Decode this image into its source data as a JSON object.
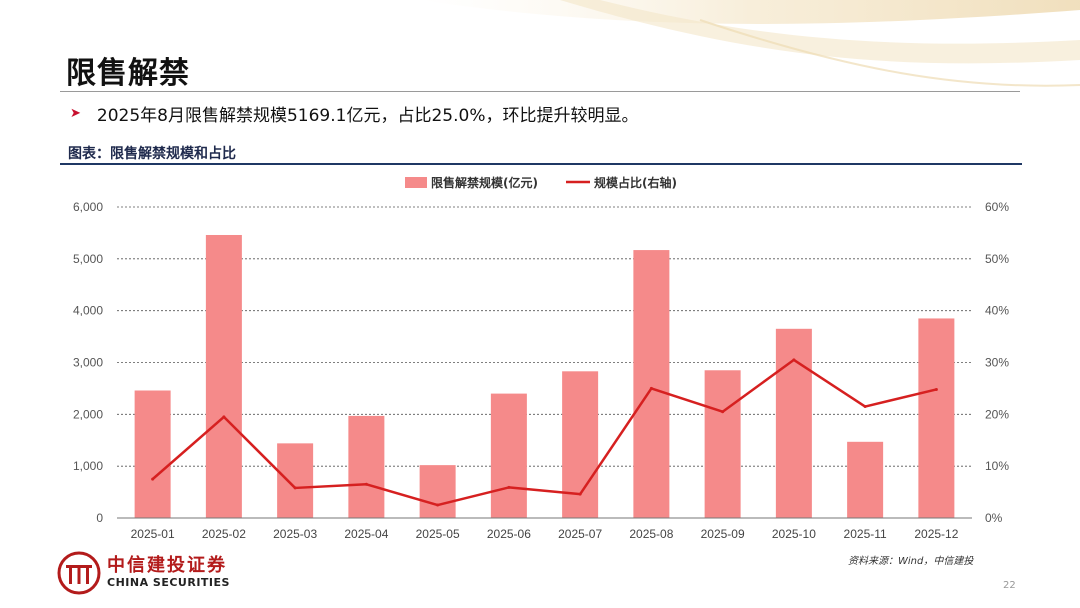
{
  "title": "限售解禁",
  "bullet": "2025年8月限售解禁规模5169.1亿元，占比25.0%，环比提升较明显。",
  "chart_caption": "图表：限售解禁规模和占比",
  "chart_data": {
    "type": "bar",
    "categories": [
      "2025-01",
      "2025-02",
      "2025-03",
      "2025-04",
      "2025-05",
      "2025-06",
      "2025-07",
      "2025-08",
      "2025-09",
      "2025-10",
      "2025-11",
      "2025-12"
    ],
    "series": [
      {
        "name": "限售解禁规模(亿元)",
        "type": "bar",
        "axis": "left",
        "values": [
          2460,
          5460,
          1440,
          1970,
          1020,
          2400,
          2830,
          5169.1,
          2850,
          3650,
          1470,
          3850
        ]
      },
      {
        "name": "规模占比(右轴)",
        "type": "line",
        "axis": "right",
        "values": [
          7.5,
          19.5,
          5.8,
          6.5,
          2.5,
          5.9,
          4.6,
          25.0,
          20.5,
          30.5,
          21.5,
          24.8
        ]
      }
    ],
    "left_axis": {
      "min": 0,
      "max": 6000,
      "ticks": [
        "0",
        "1,000",
        "2,000",
        "3,000",
        "4,000",
        "5,000",
        "6,000"
      ]
    },
    "right_axis": {
      "min": 0,
      "max": 60,
      "ticks": [
        "0%",
        "10%",
        "20%",
        "30%",
        "40%",
        "50%",
        "60%"
      ]
    },
    "legend_position": "top-center",
    "bar_color": "#f58a8a",
    "line_color": "#d62020"
  },
  "logo": {
    "cn": "中信建投证券",
    "en": "CHINA SECURITIES"
  },
  "source": "资料来源：Wind，中信建投",
  "page_number": "22"
}
